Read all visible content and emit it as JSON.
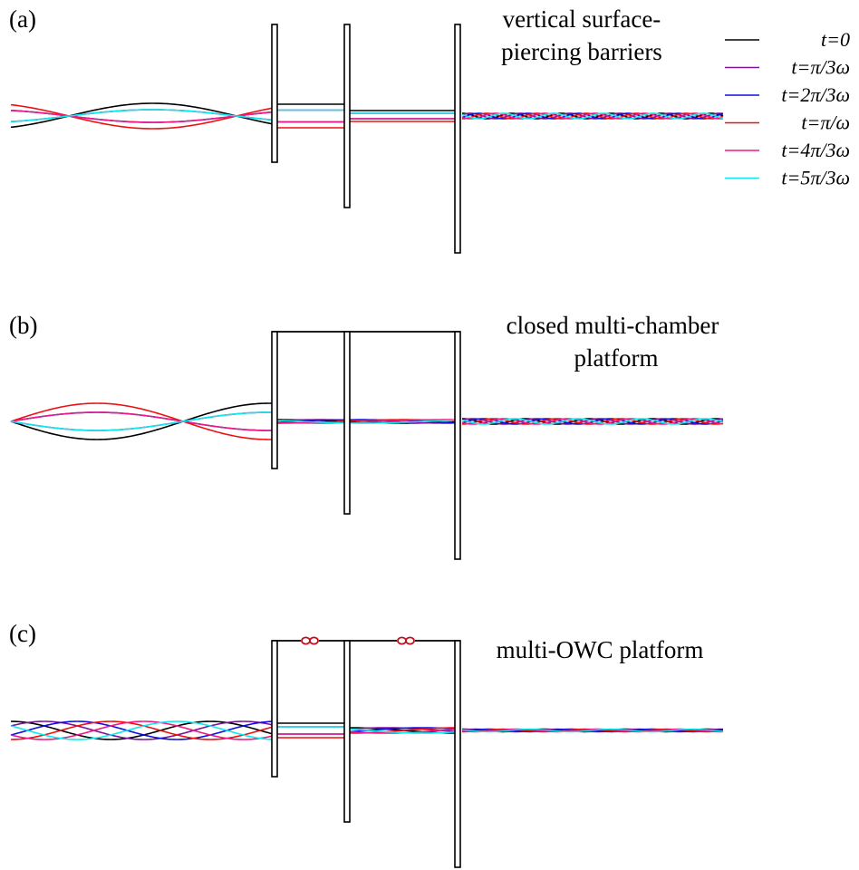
{
  "legend": [
    {
      "label": "t=0",
      "color": "#000000"
    },
    {
      "label": "t=π/3ω",
      "color": "#7b1597"
    },
    {
      "label": "t=2π/3ω",
      "color": "#1010dd"
    },
    {
      "label": "t=π/ω",
      "color": "#ee1111"
    },
    {
      "label": "t=4π/3ω",
      "color": "#ee1a84"
    },
    {
      "label": "t=5π/3ω",
      "color": "#10e8f0"
    }
  ],
  "panels": [
    {
      "id": "a",
      "tag": "(a)",
      "title_lines": [
        "vertical surface-",
        "piercing barriers"
      ]
    },
    {
      "id": "b",
      "tag": "(b)",
      "title_lines": [
        "closed multi-chamber",
        "platform"
      ]
    },
    {
      "id": "c",
      "tag": "(c)",
      "title_lines": [
        "multi-OWC platform"
      ]
    }
  ],
  "colors": {
    "structure": "#000000",
    "turbine": "#c0101a"
  }
}
